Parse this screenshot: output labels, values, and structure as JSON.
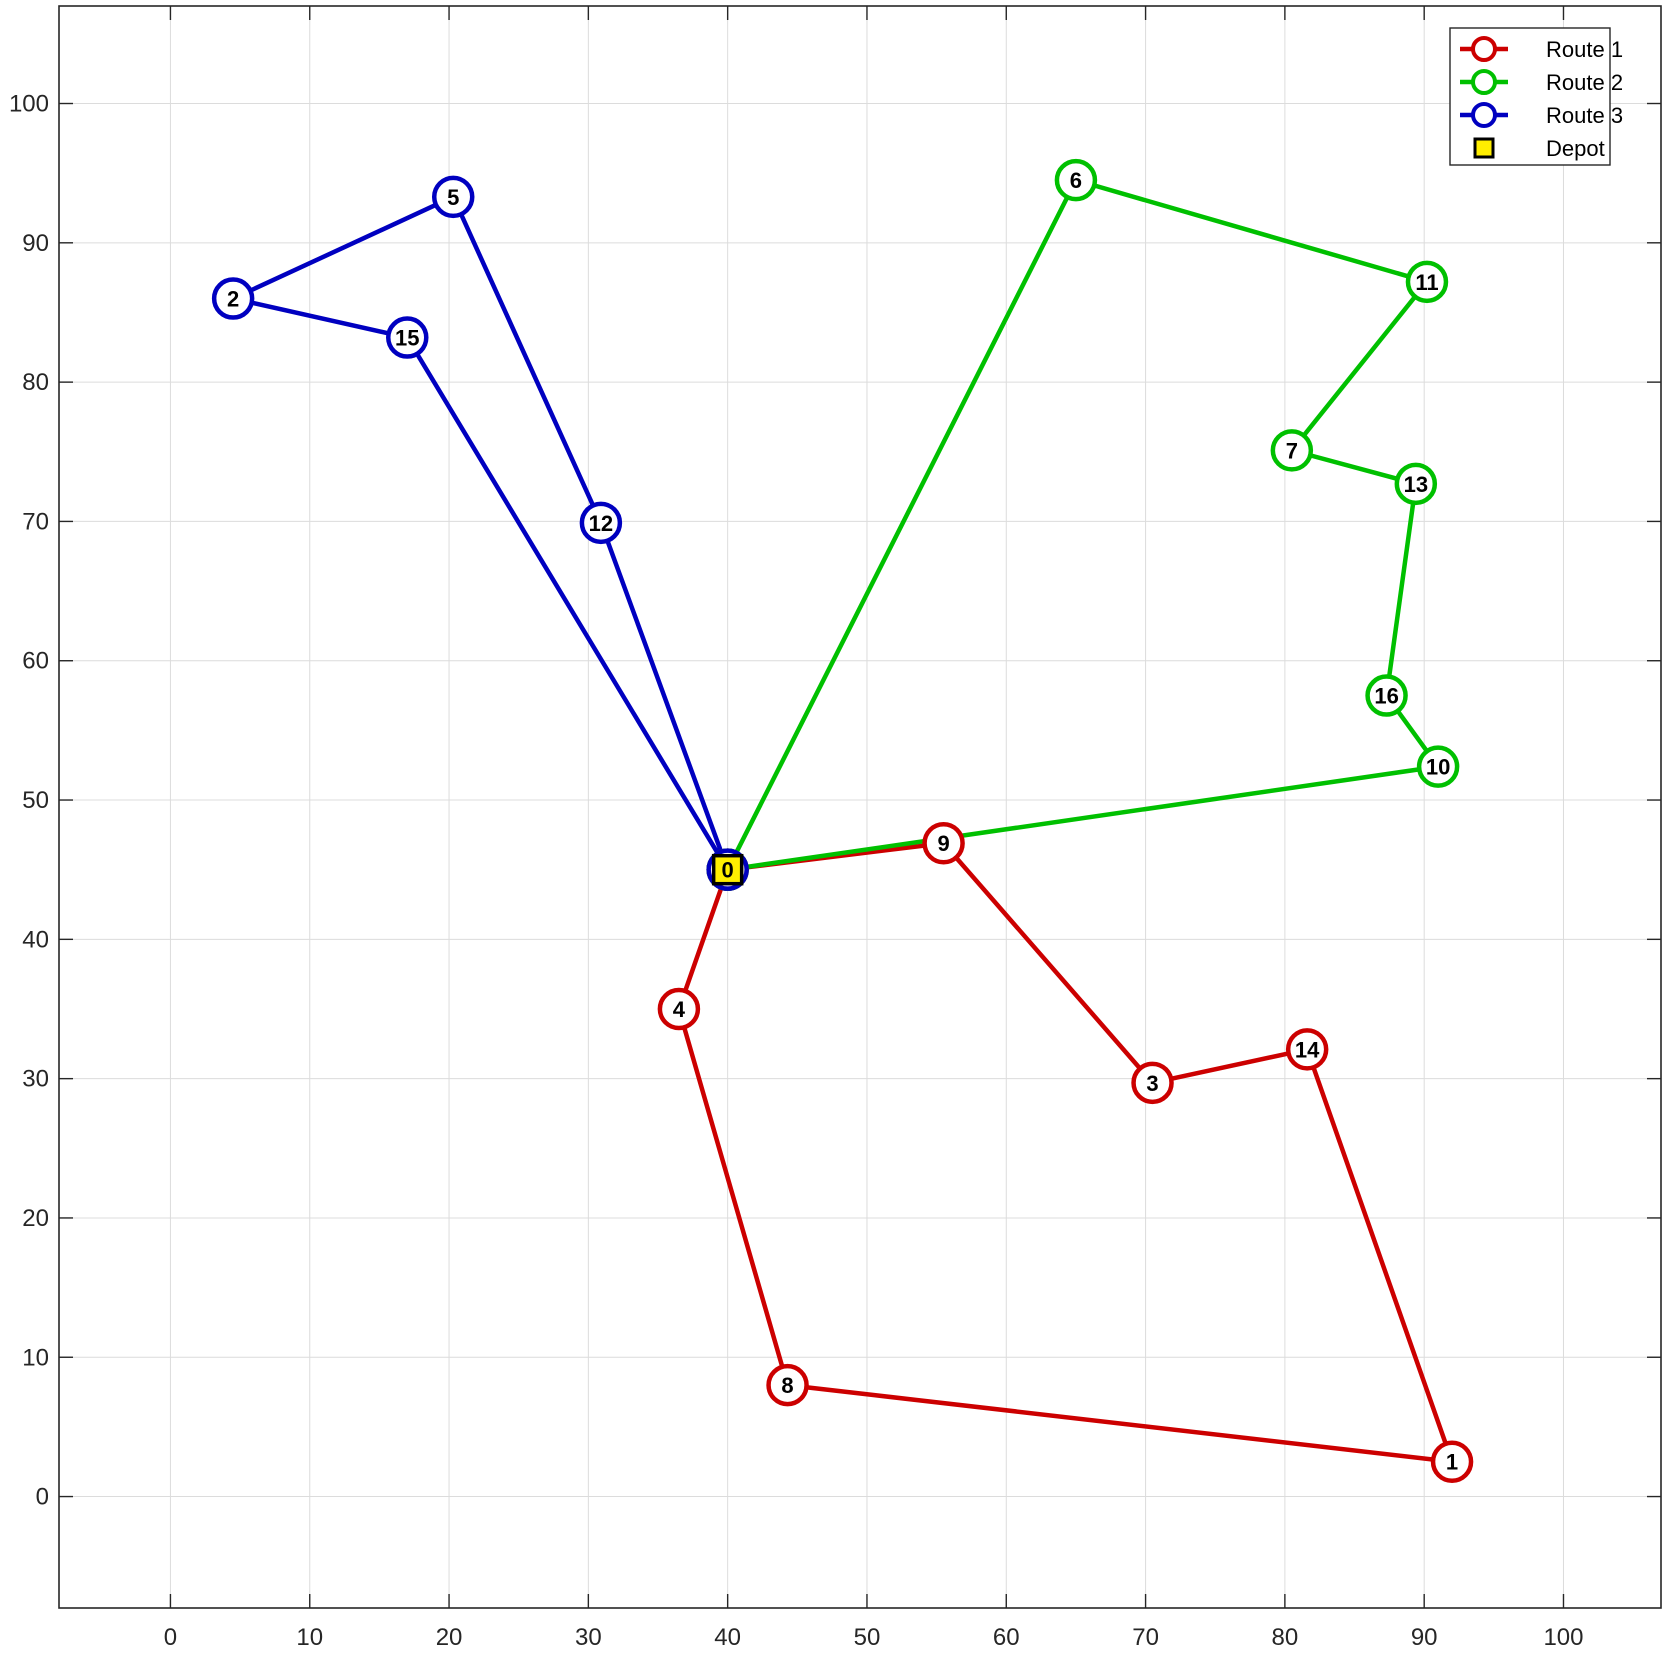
{
  "chart_data": {
    "type": "line",
    "title": "",
    "xlabel": "",
    "ylabel": "",
    "xlim": [
      -8,
      107
    ],
    "ylim": [
      -8,
      107
    ],
    "xticks": [
      0,
      10,
      20,
      30,
      40,
      50,
      60,
      70,
      80,
      90,
      100
    ],
    "yticks": [
      0,
      10,
      20,
      30,
      40,
      50,
      60,
      70,
      80,
      90,
      100
    ],
    "grid": true,
    "legend_position": "top-right",
    "nodes": [
      {
        "id": "0",
        "x": 40,
        "y": 45
      },
      {
        "id": "1",
        "x": 92,
        "y": 2.5
      },
      {
        "id": "2",
        "x": 4.5,
        "y": 86
      },
      {
        "id": "3",
        "x": 70.5,
        "y": 29.7
      },
      {
        "id": "4",
        "x": 36.5,
        "y": 35
      },
      {
        "id": "5",
        "x": 20.3,
        "y": 93.3
      },
      {
        "id": "6",
        "x": 65,
        "y": 94.5
      },
      {
        "id": "7",
        "x": 80.5,
        "y": 75.1
      },
      {
        "id": "8",
        "x": 44.3,
        "y": 8
      },
      {
        "id": "9",
        "x": 55.5,
        "y": 46.9
      },
      {
        "id": "10",
        "x": 91,
        "y": 52.4
      },
      {
        "id": "11",
        "x": 90.2,
        "y": 87.2
      },
      {
        "id": "12",
        "x": 30.9,
        "y": 69.9
      },
      {
        "id": "13",
        "x": 89.4,
        "y": 72.7
      },
      {
        "id": "14",
        "x": 81.6,
        "y": 32.1
      },
      {
        "id": "15",
        "x": 17,
        "y": 83.2
      },
      {
        "id": "16",
        "x": 87.3,
        "y": 57.5
      }
    ],
    "series": [
      {
        "name": "Route 1",
        "color": "#cc0000",
        "path": [
          "0",
          "9",
          "3",
          "14",
          "1",
          "8",
          "4",
          "0"
        ]
      },
      {
        "name": "Route 2",
        "color": "#00c000",
        "path": [
          "0",
          "6",
          "11",
          "7",
          "13",
          "16",
          "10",
          "0"
        ]
      },
      {
        "name": "Route 3",
        "color": "#0000c0",
        "path": [
          "0",
          "12",
          "5",
          "2",
          "15",
          "0"
        ]
      }
    ],
    "depot": {
      "name": "Depot",
      "node": "0",
      "fill": "#ffee00",
      "edge": "#000000"
    }
  }
}
